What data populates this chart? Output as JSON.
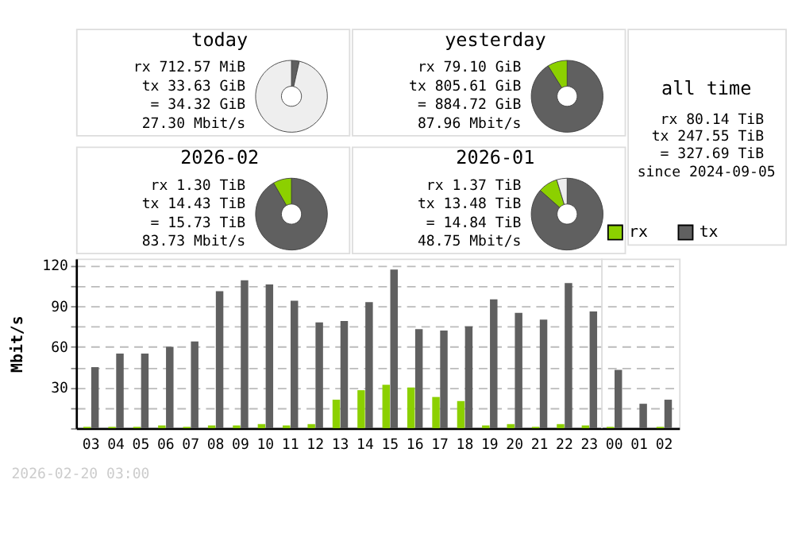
{
  "chart_data": [
    {
      "type": "donut",
      "title": "today",
      "categories": [
        null,
        null,
        null
      ],
      "values": [
        3.5,
        null,
        96.4
      ],
      "colors": [
        "#606060",
        "#8cd000",
        "#eeeeee"
      ],
      "annotations": [
        "rx 712.57 MiB",
        "tx 33.63 GiB",
        "= 34.32 GiB",
        "27.30 Mbit/s"
      ]
    },
    {
      "type": "donut",
      "title": "yesterday",
      "categories": [
        null,
        null
      ],
      "values": [
        91.1,
        8.9
      ],
      "colors": [
        "#606060",
        "#8cd000"
      ],
      "annotations": [
        "rx 79.10 GiB",
        "tx 805.61 GiB",
        "= 884.72 GiB",
        "87.96 Mbit/s"
      ]
    },
    {
      "type": "other",
      "title": "all time",
      "annotations": [
        "rx 80.14 TiB",
        "tx 247.55 TiB",
        "= 327.69 TiB",
        "since 2024-09-05"
      ]
    },
    {
      "type": "donut",
      "title": "2026-02",
      "categories": [
        null,
        null
      ],
      "values": [
        91.7,
        8.3
      ],
      "colors": [
        "#606060",
        "#8cd000"
      ],
      "annotations": [
        "rx 1.30 TiB",
        "tx 14.43 TiB",
        "= 15.73 TiB",
        "83.73 Mbit/s"
      ]
    },
    {
      "type": "donut",
      "title": "2026-01",
      "categories": [
        null,
        null,
        null
      ],
      "values": [
        86.5,
        8.8,
        4.7
      ],
      "colors": [
        "#606060",
        "#8cd000",
        "#eeeeee"
      ],
      "annotations": [
        "rx 1.37 TiB",
        "tx 13.48 TiB",
        "= 14.84 TiB",
        "48.75 Mbit/s"
      ]
    },
    {
      "type": "bar",
      "categories": [
        "03",
        "04",
        "05",
        "06",
        "07",
        "08",
        "09",
        "10",
        "11",
        "12",
        "13",
        "14",
        "15",
        "16",
        "17",
        "18",
        "19",
        "20",
        "21",
        "22",
        "23",
        "00",
        "01",
        "02"
      ],
      "series": [
        {
          "name": "rx",
          "color": "#8cd000",
          "values": [
            1,
            1,
            1,
            2,
            1,
            2,
            2,
            3,
            2,
            3,
            21,
            28,
            32,
            30,
            23,
            20,
            2,
            3,
            1,
            3,
            2,
            1,
            0,
            1
          ]
        },
        {
          "name": "tx",
          "color": "#606060",
          "values": [
            45,
            55,
            55,
            60,
            64,
            101,
            109,
            106,
            94,
            78,
            79,
            93,
            117,
            73,
            72,
            75,
            95,
            85,
            80,
            107,
            86,
            43,
            18,
            21
          ]
        }
      ],
      "ylabel": "Mbit/s",
      "ylim": [
        0,
        125
      ],
      "yticks": [
        {
          "value": 0,
          "label": null
        },
        {
          "value": 15,
          "label": null
        },
        30,
        {
          "value": 45,
          "label": null
        },
        60,
        {
          "value": 75,
          "label": null
        },
        90,
        {
          "value": 105,
          "label": null
        },
        120
      ],
      "grid": "y",
      "legend": "top right",
      "ref_lines": [
        {
          "axis": "x",
          "value": "00",
          "color": "#dddddd"
        }
      ],
      "annotations": [
        "2026-02-20 03:00"
      ]
    }
  ]
}
